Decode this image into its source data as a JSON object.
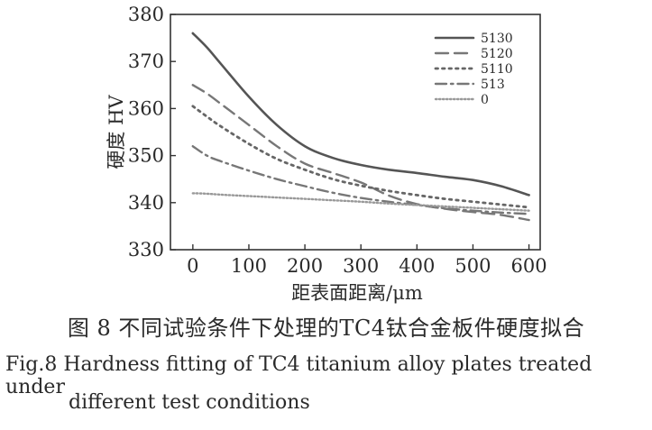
{
  "caption_zh": "图 8  不同试验条件下处理的TC4钛合金板件硬度拟合",
  "caption_en_line1": "Fig.8  Hardness fitting of TC4 titanium alloy plates treated under",
  "caption_en_line2": "different test conditions",
  "chart_data": {
    "type": "line",
    "xlabel": "距表面距离/μm",
    "ylabel": "硬度 HV",
    "xlim": [
      -40,
      620
    ],
    "ylim": [
      330,
      380
    ],
    "xticks": [
      0,
      100,
      200,
      300,
      400,
      500,
      600
    ],
    "yticks": [
      330,
      340,
      350,
      360,
      370,
      380
    ],
    "grid": false,
    "legend_position": "top-right",
    "x": [
      0,
      25,
      50,
      100,
      150,
      200,
      250,
      300,
      350,
      400,
      450,
      500,
      550,
      600
    ],
    "series": [
      {
        "name": "5130",
        "color": "#555555",
        "dash": "solid",
        "width": 2.6,
        "values": [
          376,
          373,
          369.5,
          362.5,
          356.5,
          352,
          349.5,
          348,
          347,
          346.3,
          345.5,
          344.8,
          343.5,
          341.6
        ]
      },
      {
        "name": "5120",
        "color": "#777777",
        "dash": "long-dash",
        "width": 2.4,
        "values": [
          365,
          363.2,
          361,
          356.5,
          352,
          348.3,
          346.3,
          344.3,
          341.5,
          339.7,
          338.7,
          338,
          337.4,
          336.3
        ]
      },
      {
        "name": "5110",
        "color": "#666666",
        "dash": "dot",
        "width": 2.8,
        "values": [
          360.5,
          358.3,
          356.2,
          352.5,
          349.3,
          347,
          345,
          343.6,
          342.5,
          341.6,
          340.8,
          340.2,
          339.6,
          339
        ]
      },
      {
        "name": "513",
        "color": "#777777",
        "dash": "dash-dot",
        "width": 2.4,
        "values": [
          352,
          350,
          348.8,
          346.8,
          345,
          343.5,
          342.1,
          341,
          340.2,
          339.5,
          338.8,
          338.3,
          337.9,
          337.6
        ]
      },
      {
        "name": "0",
        "color": "#999999",
        "dash": "fine-dot",
        "width": 2.4,
        "values": [
          342,
          341.9,
          341.7,
          341.4,
          341.1,
          340.8,
          340.5,
          340.2,
          339.8,
          339.5,
          339.2,
          338.9,
          338.6,
          338.3
        ]
      }
    ]
  }
}
